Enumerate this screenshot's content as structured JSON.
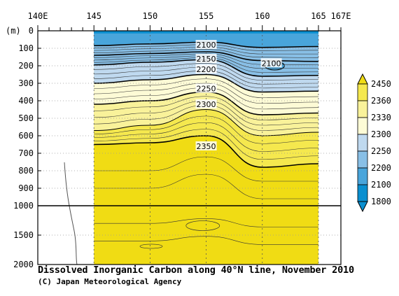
{
  "chart_data": {
    "type": "heatmap",
    "title": "Dissolved Inorganic Carbon along 40°N line, November 2010",
    "credit": "(C) Japan Meteorological Agency",
    "y_unit_label": "(m)",
    "x_ticks": [
      {
        "value": 140,
        "label": "140E"
      },
      {
        "value": 145,
        "label": "145"
      },
      {
        "value": 150,
        "label": "150"
      },
      {
        "value": 155,
        "label": "155"
      },
      {
        "value": 160,
        "label": "160"
      },
      {
        "value": 165,
        "label": "165"
      },
      {
        "value": 167,
        "label": "167E"
      }
    ],
    "xlim": [
      140,
      167
    ],
    "y_ticks": [
      {
        "value": 0,
        "label": "0"
      },
      {
        "value": 100,
        "label": "100"
      },
      {
        "value": 200,
        "label": "200"
      },
      {
        "value": 300,
        "label": "300"
      },
      {
        "value": 400,
        "label": "400"
      },
      {
        "value": 500,
        "label": "500"
      },
      {
        "value": 600,
        "label": "600"
      },
      {
        "value": 700,
        "label": "700"
      },
      {
        "value": 800,
        "label": "800"
      },
      {
        "value": 900,
        "label": "900"
      },
      {
        "value": 1000,
        "label": "1000"
      },
      {
        "value": 1500,
        "label": "1500"
      },
      {
        "value": 2000,
        "label": "2000"
      }
    ],
    "ylim": [
      0,
      2000
    ],
    "y_scale_break": 1000,
    "data_x_range": [
      145,
      165
    ],
    "contour_labels": [
      {
        "x": 155,
        "y": 80,
        "text": "2100"
      },
      {
        "x": 160.8,
        "y": 185,
        "text": "2100"
      },
      {
        "x": 155,
        "y": 160,
        "text": "2150"
      },
      {
        "x": 155,
        "y": 220,
        "text": "2200"
      },
      {
        "x": 155,
        "y": 330,
        "text": "2250"
      },
      {
        "x": 155,
        "y": 420,
        "text": "2300"
      },
      {
        "x": 155,
        "y": 660,
        "text": "2350"
      }
    ],
    "colorbar": {
      "levels": [
        "2450",
        "2360",
        "2330",
        "2300",
        "2250",
        "2200",
        "2100",
        "1800"
      ],
      "colors": [
        "#f0dc14",
        "#f5e84e",
        "#f9f29a",
        "#fdfbd6",
        "#bfd9ef",
        "#88bfe6",
        "#49a5db",
        "#0a8fd0"
      ]
    },
    "section_profile": [
      {
        "x": 145,
        "d2100": 85,
        "d2150": 140,
        "d2200": 195,
        "d2250": 300,
        "d2300": 420,
        "d2330": 570,
        "d2350": 650
      },
      {
        "x": 150,
        "d2100": 75,
        "d2150": 130,
        "d2200": 180,
        "d2250": 280,
        "d2300": 400,
        "d2330": 540,
        "d2350": 640
      },
      {
        "x": 155,
        "d2100": 65,
        "d2150": 120,
        "d2200": 165,
        "d2250": 250,
        "d2300": 350,
        "d2330": 450,
        "d2350": 600
      },
      {
        "x": 160,
        "d2100": 95,
        "d2150": 170,
        "d2200": 260,
        "d2250": 350,
        "d2300": 480,
        "d2330": 600,
        "d2350": 780
      },
      {
        "x": 165,
        "d2100": 90,
        "d2150": 175,
        "d2200": 255,
        "d2250": 345,
        "d2300": 470,
        "d2330": 580,
        "d2350": 760
      }
    ]
  }
}
